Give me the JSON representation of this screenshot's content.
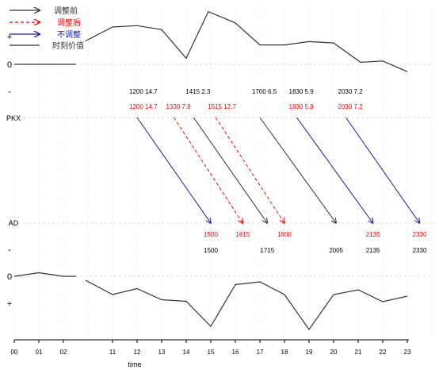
{
  "chart_data": {
    "type": "line",
    "title": "",
    "xlabel": "time",
    "x_ticks": [
      {
        "label": "00",
        "h": 0
      },
      {
        "label": "01",
        "h": 1
      },
      {
        "label": "02",
        "h": 2
      },
      {
        "label": "11",
        "h": 4
      },
      {
        "label": "12",
        "h": 5
      },
      {
        "label": "13",
        "h": 6
      },
      {
        "label": "14",
        "h": 7
      },
      {
        "label": "15",
        "h": 8
      },
      {
        "label": "16",
        "h": 9
      },
      {
        "label": "17",
        "h": 10
      },
      {
        "label": "18",
        "h": 11
      },
      {
        "label": "19",
        "h": 12
      },
      {
        "label": "20",
        "h": 13
      },
      {
        "label": "21",
        "h": 14
      },
      {
        "label": "22",
        "h": 15
      },
      {
        "label": "23",
        "h": 16
      }
    ],
    "legend": {
      "position": "top-left",
      "entries": [
        {
          "label": "调整前",
          "color": "#333333",
          "style": "solid-arrow"
        },
        {
          "label": "调整后",
          "color": "#ff0000",
          "style": "dashed-arrow"
        },
        {
          "label": "不调整",
          "color": "#1a1aa6",
          "style": "solid-arrow"
        },
        {
          "label": "时刻价值",
          "color": "#333333",
          "style": "solid"
        }
      ]
    },
    "top_panel": {
      "axis_labels": {
        "plus": "+",
        "zero": "0",
        "minus": "-"
      },
      "flat_segment": [
        0,
        2
      ],
      "curve": [
        {
          "h": 2.9,
          "v": 0.35
        },
        {
          "h": 4,
          "v": 0.56
        },
        {
          "h": 5,
          "v": 0.58
        },
        {
          "h": 6,
          "v": 0.52
        },
        {
          "h": 7,
          "v": 0.09
        },
        {
          "h": 7.9,
          "v": 0.79
        },
        {
          "h": 9,
          "v": 0.62
        },
        {
          "h": 10,
          "v": 0.29
        },
        {
          "h": 11,
          "v": 0.29
        },
        {
          "h": 12,
          "v": 0.34
        },
        {
          "h": 13,
          "v": 0.32
        },
        {
          "h": 14.1,
          "v": 0.03
        },
        {
          "h": 15,
          "v": 0.05
        },
        {
          "h": 16,
          "v": -0.11
        }
      ]
    },
    "bottom_panel": {
      "axis_labels": {
        "minus": "-",
        "zero": "0",
        "plus": "+"
      },
      "flat_segment": [
        0,
        2
      ],
      "curve": [
        {
          "h": 0,
          "v": 0.0
        },
        {
          "h": 1,
          "v": 0.09
        },
        {
          "h": 2,
          "v": 0.0
        },
        {
          "h": 2.9,
          "v": -0.1
        },
        {
          "h": 4,
          "v": -0.46
        },
        {
          "h": 5,
          "v": -0.31
        },
        {
          "h": 6,
          "v": -0.59
        },
        {
          "h": 7,
          "v": -0.63
        },
        {
          "h": 8,
          "v": -1.26
        },
        {
          "h": 9,
          "v": -0.21
        },
        {
          "h": 10,
          "v": -0.14
        },
        {
          "h": 11,
          "v": -0.46
        },
        {
          "h": 12,
          "v": -1.34
        },
        {
          "h": 13,
          "v": -0.46
        },
        {
          "h": 14,
          "v": -0.34
        },
        {
          "h": 15,
          "v": -0.64
        },
        {
          "h": 16,
          "v": -0.5
        }
      ]
    },
    "stations": {
      "origin": "PKX",
      "destination": "AD"
    },
    "flights": [
      {
        "type": "unadjusted",
        "dep_label": "1200 14.7",
        "dep_h": 5.0,
        "arr_label": "1500",
        "arr_h": 8.0
      },
      {
        "type": "before",
        "dep_label": "1415 2.3",
        "dep_h": 7.3,
        "arr_label": "1715",
        "arr_h": 10.3
      },
      {
        "type": "after",
        "dep_label": "1330 7.8",
        "dep_h": 6.5,
        "arr_label": "1615",
        "arr_h": 9.3
      },
      {
        "type": "after",
        "dep_label": "1515 12.7",
        "dep_h": 8.2,
        "arr_label": "1800",
        "arr_h": 11.0
      },
      {
        "type": "before",
        "dep_label": "1700 6.5",
        "dep_h": 10.0,
        "arr_label": "2005",
        "arr_h": 13.1
      },
      {
        "type": "unadjusted",
        "dep_label": "1830 5.9",
        "dep_h": 11.5,
        "arr_label": "2135",
        "arr_h": 14.6
      },
      {
        "type": "unadjusted",
        "dep_label": "2030 7.2",
        "dep_h": 13.5,
        "arr_label": "2330",
        "arr_h": 16.5
      }
    ],
    "before_row": [
      {
        "label": "1200 14.7",
        "h": 5.0
      },
      {
        "label": "1415 2.3",
        "h": 7.3
      },
      {
        "label": "1700 6.5",
        "h": 10.0
      },
      {
        "label": "1830 5.9",
        "h": 11.5
      },
      {
        "label": "2030 7.2",
        "h": 13.5
      }
    ],
    "after_row": [
      {
        "label": "1200 14.7",
        "h": 5.0
      },
      {
        "label": "1330 7.8",
        "h": 6.5
      },
      {
        "label": "1515 12.7",
        "h": 8.2
      },
      {
        "label": "1830 5.9",
        "h": 11.5
      },
      {
        "label": "2030 7.2",
        "h": 13.5
      }
    ],
    "arrival_after_row": [
      {
        "label": "1500",
        "h": 8.0
      },
      {
        "label": "1615",
        "h": 9.3
      },
      {
        "label": "1800",
        "h": 11.0
      },
      {
        "label": "2135",
        "h": 14.6
      },
      {
        "label": "2330",
        "h": 16.5
      }
    ],
    "arrival_before_row": [
      {
        "label": "1500",
        "h": 8.0
      },
      {
        "label": "1715",
        "h": 10.3
      },
      {
        "label": "2005",
        "h": 13.1
      },
      {
        "label": "2135",
        "h": 14.6
      },
      {
        "label": "2330",
        "h": 16.5
      }
    ],
    "grid": true
  },
  "colors": {
    "before": "#333333",
    "after": "#ff0000",
    "unadjusted": "#1a1aa6",
    "grid": "#d4d4d4",
    "axis": "#000000"
  }
}
